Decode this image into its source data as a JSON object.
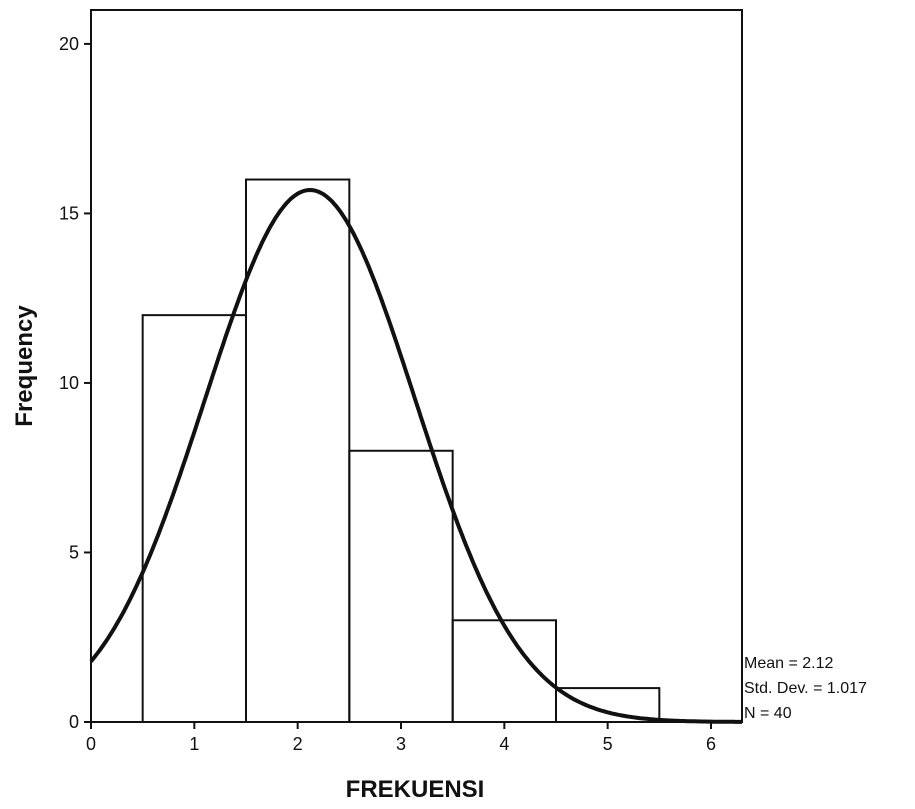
{
  "chart_data": {
    "type": "bar",
    "subtype": "histogram-with-normal-curve",
    "title": "",
    "xlabel": "FREKUENSI",
    "ylabel": "Frequency",
    "xlim": [
      0,
      6.3
    ],
    "ylim": [
      0,
      21
    ],
    "x_ticks": [
      "0",
      "1",
      "2",
      "3",
      "4",
      "5",
      "6"
    ],
    "y_ticks": [
      "0",
      "5",
      "10",
      "15",
      "20"
    ],
    "bins": [
      {
        "x0": 0.5,
        "x1": 1.5,
        "value": 12
      },
      {
        "x0": 1.5,
        "x1": 2.5,
        "value": 16
      },
      {
        "x0": 2.5,
        "x1": 3.5,
        "value": 8
      },
      {
        "x0": 3.5,
        "x1": 4.5,
        "value": 3
      },
      {
        "x0": 4.5,
        "x1": 5.5,
        "value": 1
      }
    ],
    "normal_curve": {
      "mean": 2.12,
      "std": 1.017,
      "n": 40,
      "bin_width": 1
    },
    "stats": {
      "mean": "Mean = 2.12",
      "std": "Std. Dev. = 1.017",
      "n": "N = 40"
    },
    "grid": false,
    "legend": "none"
  }
}
